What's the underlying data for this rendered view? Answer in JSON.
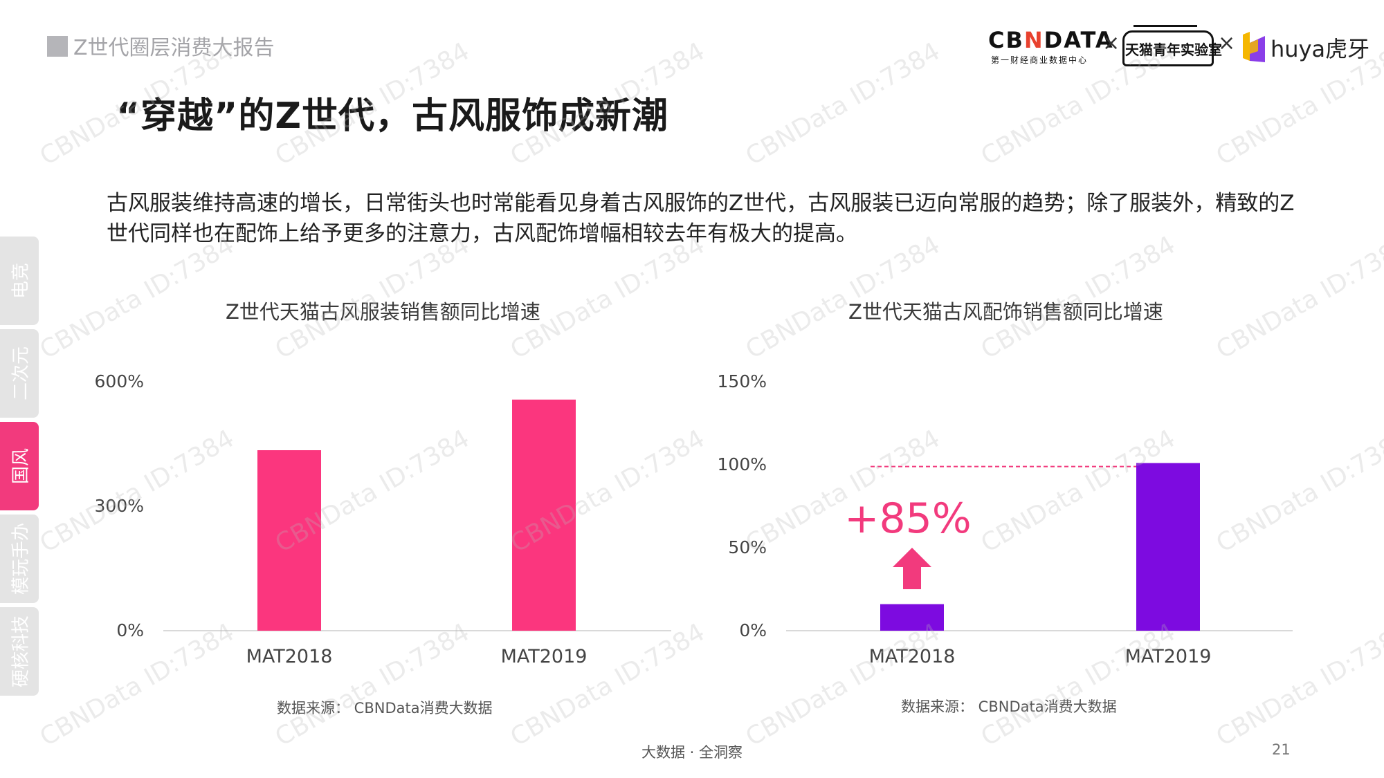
{
  "header": {
    "report_title": "Z世代圈层消费大报告",
    "page_title": "“穿越”的Z世代，古风服饰成新潮"
  },
  "logos": {
    "cbn_main_a": "CB",
    "cbn_main_n": "N",
    "cbn_main_b": "DATA",
    "cbn_sub": "第一财经商业数据中心",
    "times": "×",
    "tmall": "天猫青年实验室",
    "huya": "huya虎牙"
  },
  "description": "古风服装维持高速的增长，日常街头也时常能看见身着古风服饰的Z世代，古风服装已迈向常服的趋势；除了服装外，精致的Z世代同样也在配饰上给予更多的注意力，古风配饰增幅相较去年有极大的提高。",
  "side_tabs": [
    {
      "label": "电竞",
      "active": false
    },
    {
      "label": "二次元",
      "active": false
    },
    {
      "label": "国风",
      "active": true
    },
    {
      "label": "模玩手办",
      "active": false
    },
    {
      "label": "硬核科技",
      "active": false
    }
  ],
  "chart_data": [
    {
      "type": "bar",
      "title": "Z世代天猫古风服装销售额同比增速",
      "categories": [
        "MAT2018",
        "MAT2019"
      ],
      "values": [
        435,
        557
      ],
      "ylim": [
        0,
        600
      ],
      "yticks": [
        "0%",
        "300%",
        "600%"
      ],
      "grid": false,
      "color": "#fb367e",
      "source": "数据来源： CBNData消费大数据"
    },
    {
      "type": "bar",
      "title": "Z世代天猫古风配饰销售额同比增速",
      "categories": [
        "MAT2018",
        "MAT2019"
      ],
      "values": [
        16,
        101
      ],
      "ylim": [
        0,
        150
      ],
      "yticks": [
        "0%",
        "50%",
        "100%",
        "150%"
      ],
      "grid": false,
      "color": "#7d0be0",
      "annotation": "+85%",
      "annotation_color": "#f23a7d",
      "source": "数据来源： CBNData消费大数据"
    }
  ],
  "footer": {
    "tagline": "大数据 · 全洞察",
    "page_number": "21"
  },
  "watermark": "CBNData ID:7384"
}
